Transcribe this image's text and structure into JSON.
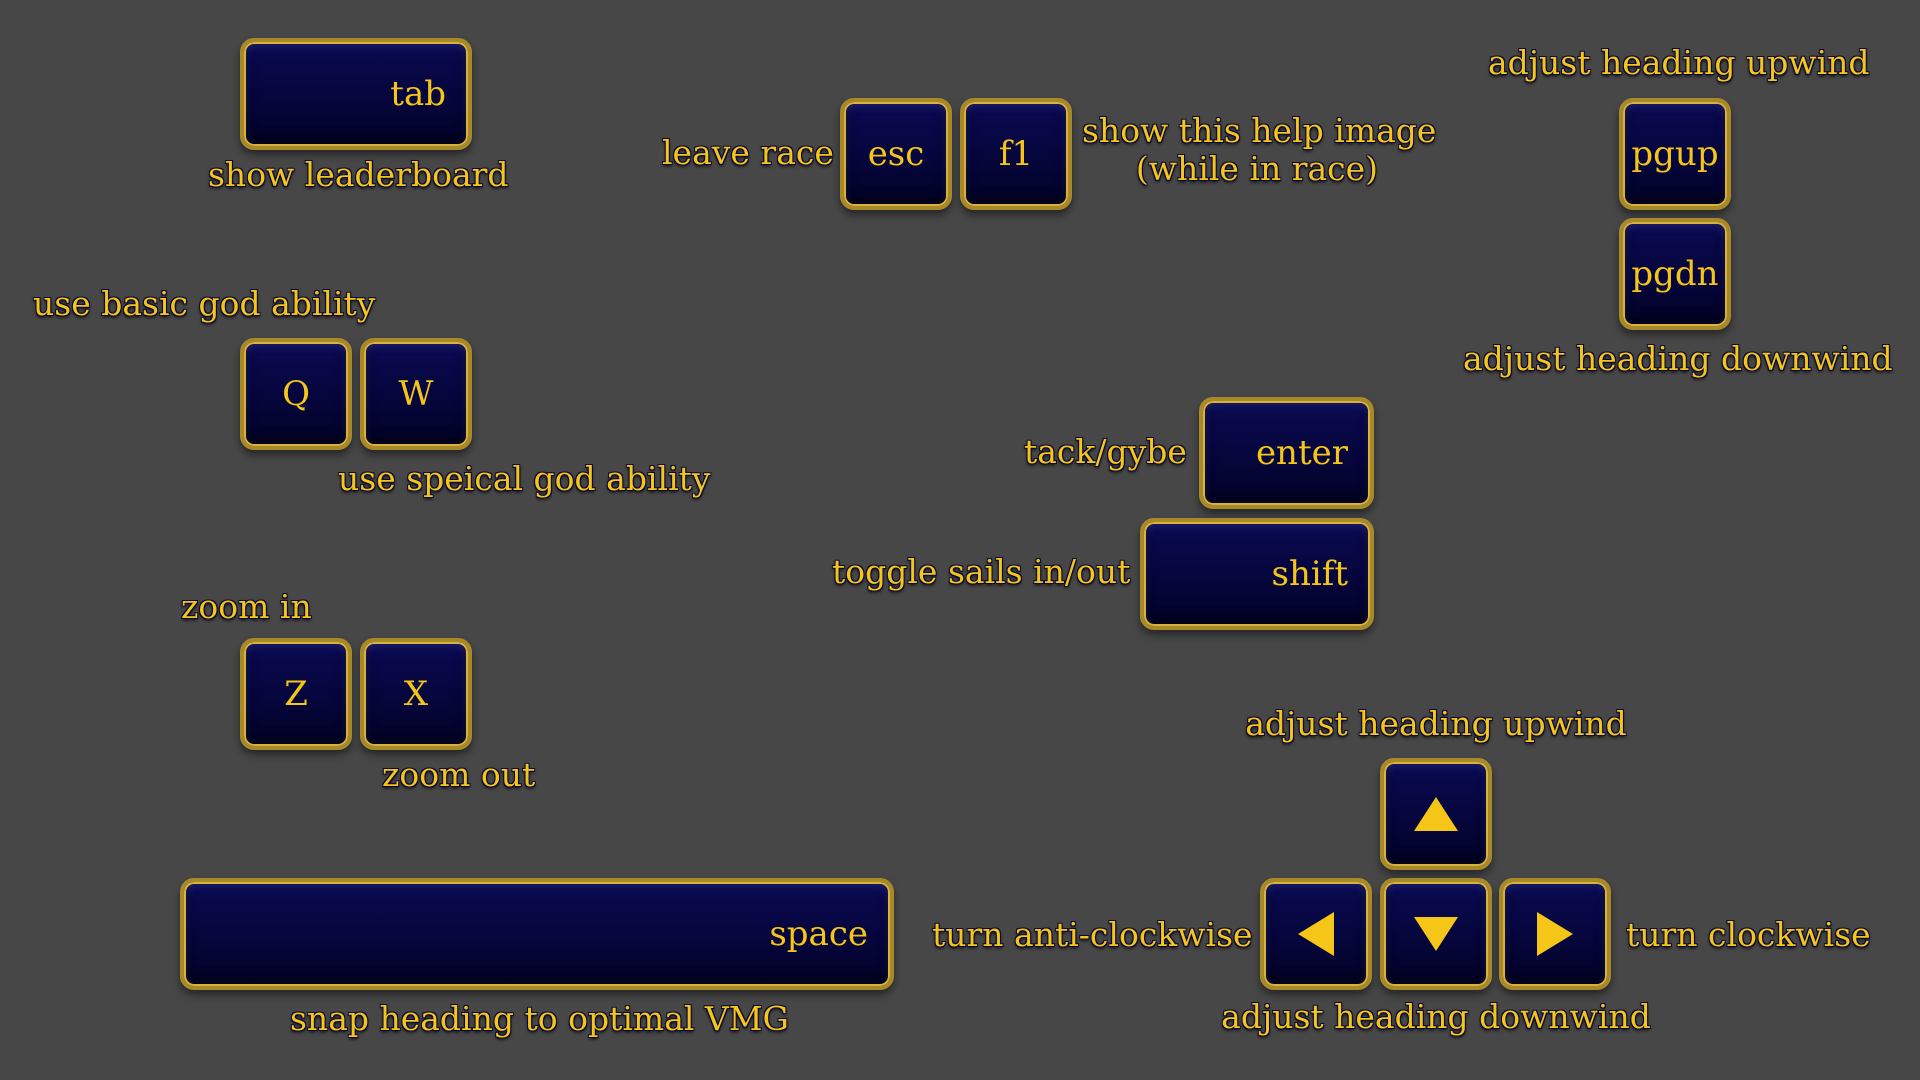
{
  "colors": {
    "background": "#474747",
    "key_fill": "#05053a",
    "key_border": "#d9b23d",
    "text": "#f5c518"
  },
  "keys": {
    "tab": "tab",
    "esc": "esc",
    "f1": "f1",
    "pgup": "pgup",
    "pgdn": "pgdn",
    "q": "Q",
    "w": "W",
    "enter": "enter",
    "shift": "shift",
    "z": "Z",
    "x": "X",
    "space": "space"
  },
  "labels": {
    "show_leaderboard": "show leaderboard",
    "leave_race": "leave race",
    "show_help_line1": "show this help image",
    "show_help_line2": "(while in race)",
    "pg_upwind": "adjust heading upwind",
    "pg_downwind": "adjust heading downwind",
    "basic_ability": "use basic god ability",
    "special_ability": "use speical god ability",
    "tack_gybe": "tack/gybe",
    "toggle_sails": "toggle sails in/out",
    "zoom_in": "zoom in",
    "zoom_out": "zoom out",
    "arrow_upwind": "adjust heading upwind",
    "arrow_downwind": "adjust heading downwind",
    "turn_anticlockwise": "turn anti-clockwise",
    "turn_clockwise": "turn clockwise",
    "snap_heading": "snap heading to optimal VMG"
  },
  "icons": {
    "up": "arrow-up-icon",
    "down": "arrow-down-icon",
    "left": "arrow-left-icon",
    "right": "arrow-right-icon"
  }
}
